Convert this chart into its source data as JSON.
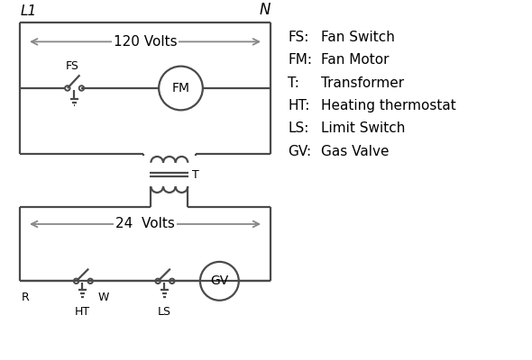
{
  "bg_color": "#ffffff",
  "line_color": "#4a4a4a",
  "arrow_color": "#888888",
  "text_color": "#000000",
  "legend_items": [
    [
      "FS:",
      "Fan Switch"
    ],
    [
      "FM:",
      "Fan Motor"
    ],
    [
      "T:",
      "Transformer"
    ],
    [
      "HT:",
      "Heating thermostat"
    ],
    [
      "LS:",
      "Limit Switch"
    ],
    [
      "GV:",
      "Gas Valve"
    ]
  ],
  "L1_label": "L1",
  "N_label": "N",
  "volts_120": "120 Volts",
  "volts_24": "24  Volts",
  "FS_label": "FS",
  "FM_label": "FM",
  "T_label": "T",
  "R_label": "R",
  "W_label": "W",
  "HT_label": "HT",
  "LS_label": "LS",
  "GV_label": "GV"
}
